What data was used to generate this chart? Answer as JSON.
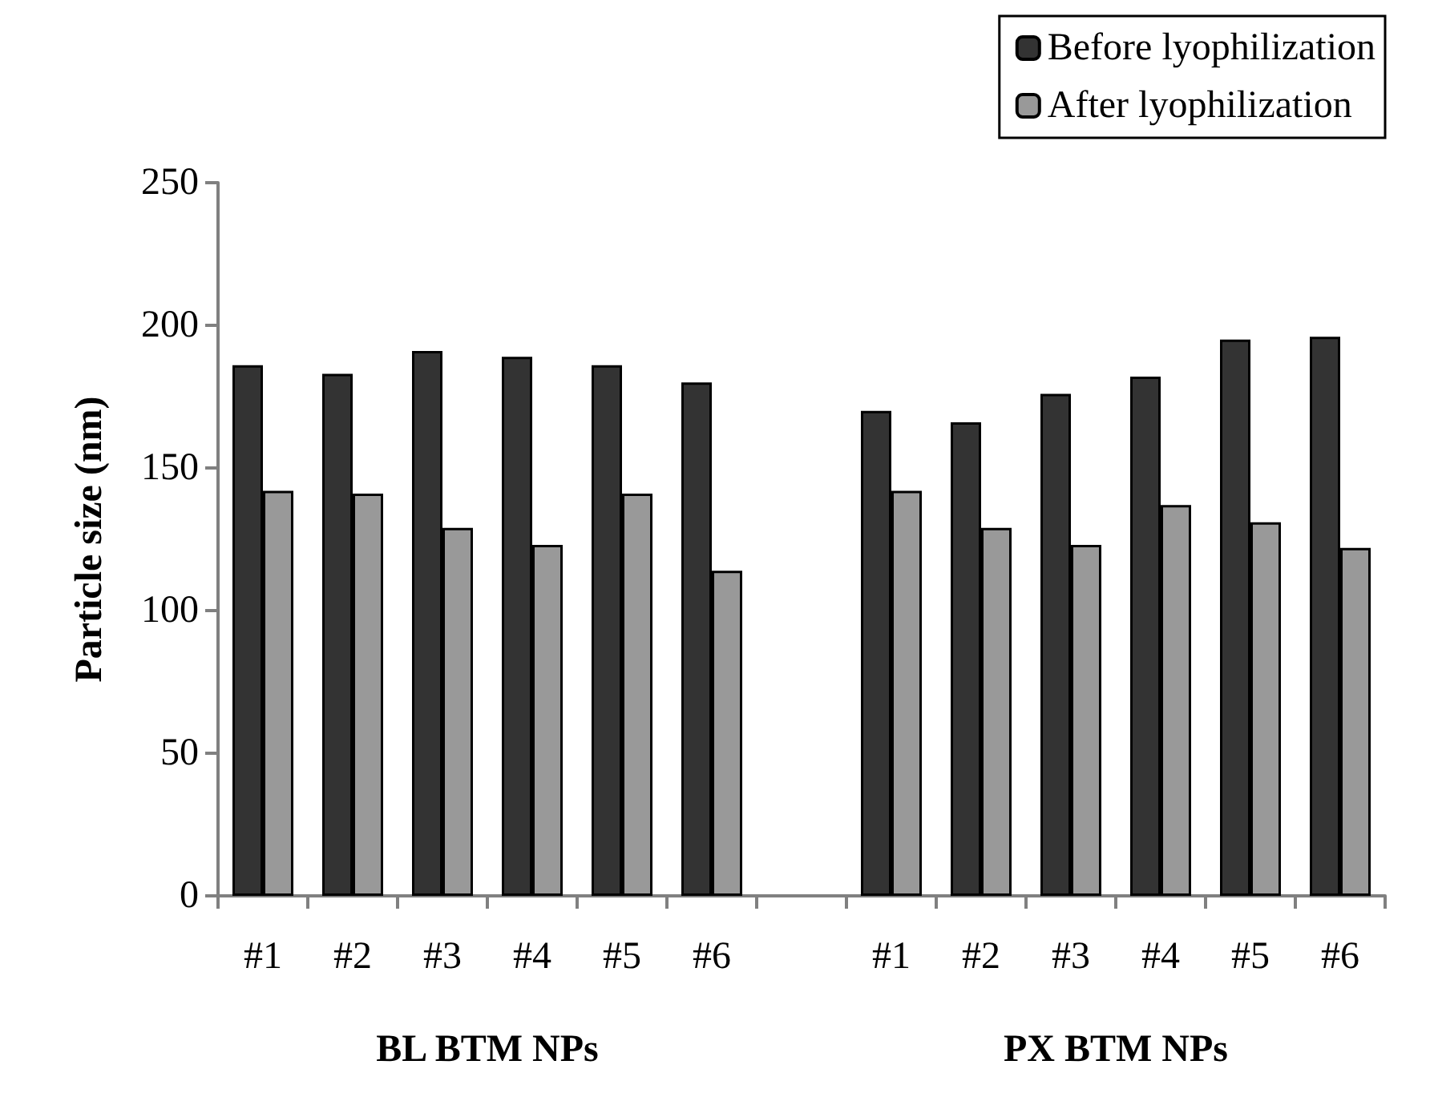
{
  "chart_data": {
    "type": "bar",
    "ylabel": "Particle size (nm)",
    "categories": [
      "#1",
      "#2",
      "#3",
      "#4",
      "#5",
      "#6",
      null,
      "#1",
      "#2",
      "#3",
      "#4",
      "#5",
      "#6"
    ],
    "series": [
      {
        "name": "Before lyophilization",
        "color": "#333333",
        "values": [
          186,
          183,
          191,
          189,
          186,
          180,
          null,
          170,
          166,
          176,
          182,
          195,
          196
        ]
      },
      {
        "name": "After lyophilization",
        "color": "#999999",
        "values": [
          142,
          141,
          129,
          123,
          141,
          114,
          null,
          142,
          129,
          123,
          137,
          131,
          122
        ]
      }
    ],
    "ylim": [
      0,
      250
    ],
    "yticks": [
      0,
      50,
      100,
      150,
      200,
      250
    ],
    "grid": false,
    "legend": "top right",
    "annotations": [
      "BL BTM NPs",
      "PX BTM NPs"
    ]
  }
}
